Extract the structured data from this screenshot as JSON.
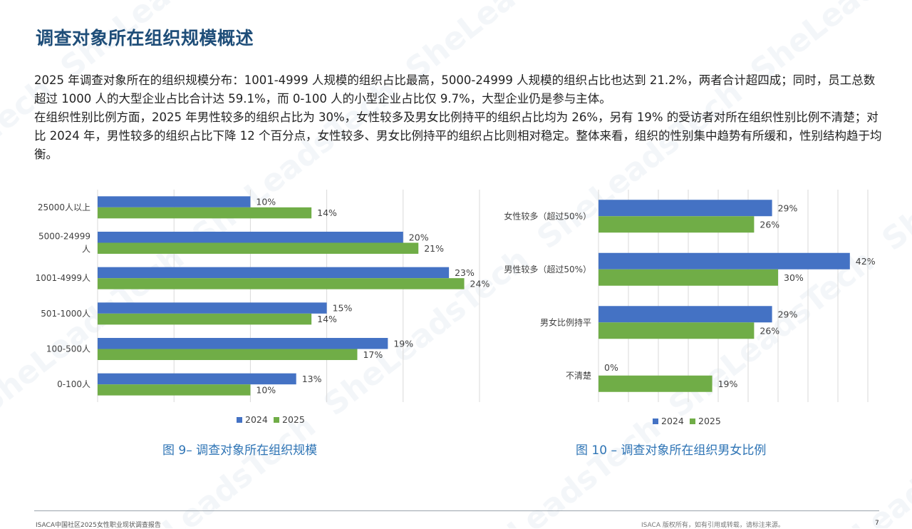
{
  "title": "调查对象所在组织规模概述",
  "paragraphs": [
    "2025 年调查对象所在的组织规模分布：1001-4999 人规模的组织占比最高，5000-24999 人规模的组织占比也达到 21.2%，两者合计超四成；同时，员工总数超过 1000 人的大型企业占比合计达 59.1%，而 0-100 人的小型企业占比仅 9.7%，大型企业仍是参与主体。",
    "在组织性别比例方面，2025 年男性较多的组织占比为 30%，女性较多及男女比例持平的组织占比均为 26%，另有 19% 的受访者对所在组织性别比例不清楚；对比 2024 年，男性较多的组织占比下降 12 个百分点，女性较多、男女比例持平的组织占比则相对稳定。整体来看，组织的性别集中趋势有所缓和，性别结构趋于均衡。"
  ],
  "colors": {
    "series_2024": "#4472c4",
    "series_2025": "#70ad47",
    "title": "#1f4e79",
    "caption": "#2e74b5"
  },
  "chart_data": [
    {
      "type": "bar",
      "orientation": "horizontal",
      "title": "图 9– 调查对象所在组织规模",
      "categories": [
        "25000人以上",
        "5000-24999人",
        "1001-4999人",
        "501-1000人",
        "100-500人",
        "0-100人"
      ],
      "series": [
        {
          "name": "2024",
          "values": [
            10,
            20,
            23,
            15,
            19,
            13
          ]
        },
        {
          "name": "2025",
          "values": [
            14,
            21,
            24,
            14,
            17,
            10
          ]
        }
      ],
      "value_labels": [
        [
          "10%",
          "20%",
          "23%",
          "15%",
          "19%",
          "13%"
        ],
        [
          "14%",
          "21%",
          "24%",
          "14%",
          "17%",
          "10%"
        ]
      ],
      "xlim": [
        0,
        25
      ],
      "grid": true,
      "legend": "bottom"
    },
    {
      "type": "bar",
      "orientation": "horizontal",
      "title": "图 10 – 调查对象所在组织男女比例",
      "categories": [
        "女性较多（超过50%）",
        "男性较多（超过50%）",
        "男女比例持平",
        "不清楚"
      ],
      "series": [
        {
          "name": "2024",
          "values": [
            29,
            42,
            29,
            0
          ]
        },
        {
          "name": "2025",
          "values": [
            26,
            30,
            26,
            19
          ]
        }
      ],
      "value_labels": [
        [
          "29%",
          "42%",
          "29%",
          "0%"
        ],
        [
          "26%",
          "30%",
          "26%",
          "19%"
        ]
      ],
      "xlim": [
        0,
        45
      ],
      "grid": true,
      "legend": "bottom"
    }
  ],
  "footer": {
    "left": "ISACA中国社区2025女性职业现状调查报告",
    "right": "ISACA 版权所有，如有引用或转载，请标注来源。",
    "page": "7"
  }
}
